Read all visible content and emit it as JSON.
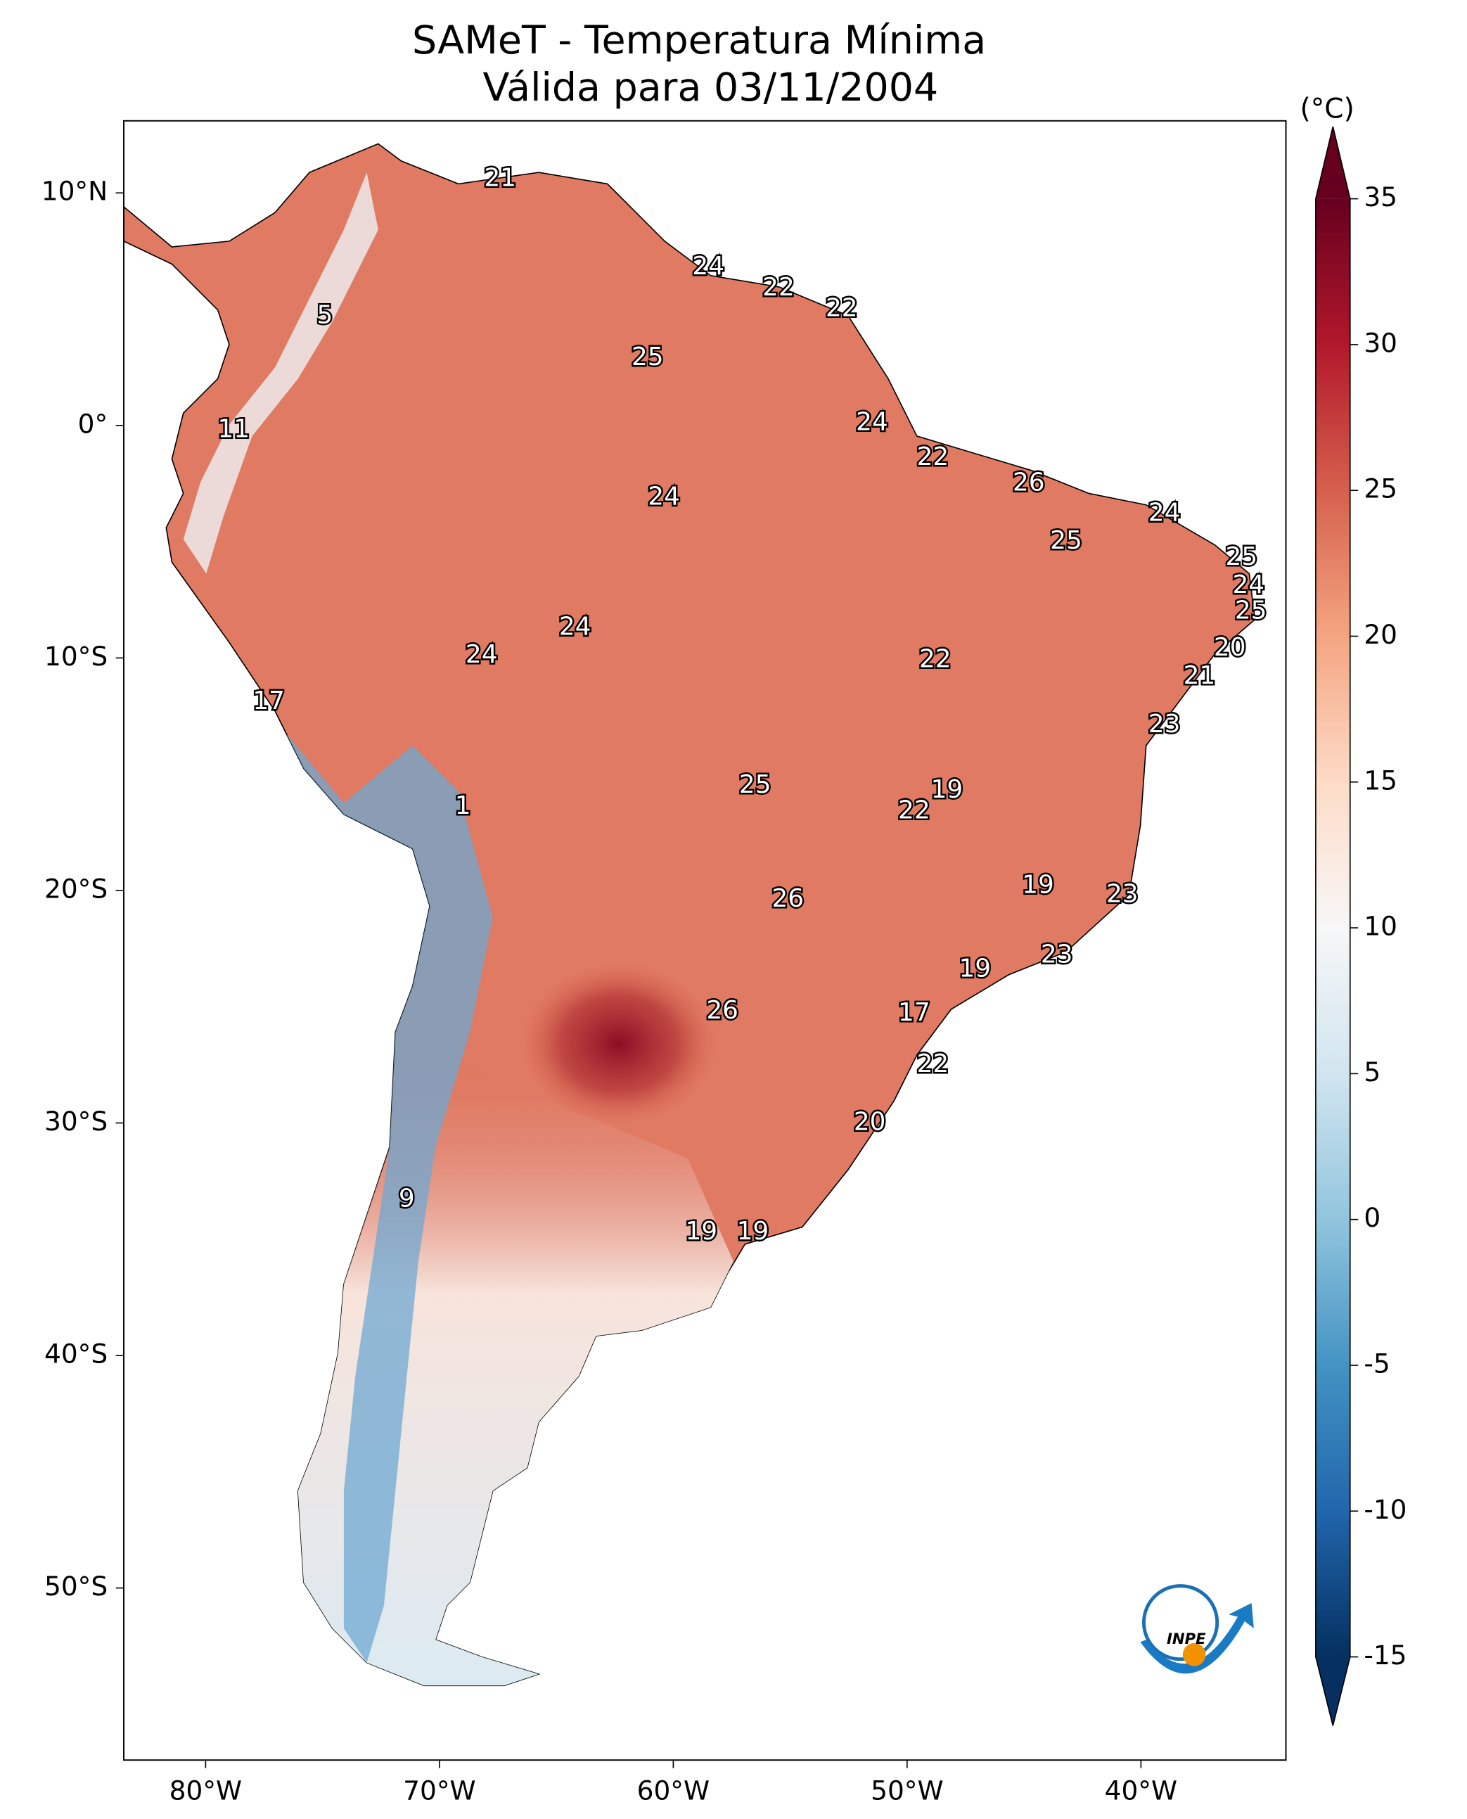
{
  "chart_data": {
    "type": "map",
    "title": "SAMeT - Temperatura Mínima",
    "subtitle": "Válida para 03/11/2004",
    "xlim": [
      -83.5,
      -33.8
    ],
    "ylim": [
      -57.4,
      13.1
    ],
    "xticks": [
      {
        "value": -80,
        "label": "80°W"
      },
      {
        "value": -70,
        "label": "70°W"
      },
      {
        "value": -60,
        "label": "60°W"
      },
      {
        "value": -50,
        "label": "50°W"
      },
      {
        "value": -40,
        "label": "40°W"
      }
    ],
    "yticks": [
      {
        "value": 10,
        "label": "10°N"
      },
      {
        "value": 0,
        "label": "0°"
      },
      {
        "value": -10,
        "label": "10°S"
      },
      {
        "value": -20,
        "label": "20°S"
      },
      {
        "value": -30,
        "label": "30°S"
      },
      {
        "value": -40,
        "label": "40°S"
      },
      {
        "value": -50,
        "label": "50°S"
      }
    ],
    "colorbar": {
      "label": "(°C)",
      "lim": [
        -15,
        35
      ],
      "ticks": [
        -15,
        -10,
        -5,
        0,
        5,
        10,
        15,
        20,
        25,
        30,
        35
      ],
      "colors": [
        "#053061",
        "#2166ac",
        "#4393c3",
        "#92c5de",
        "#d1e5f0",
        "#f7f7f7",
        "#fddbc7",
        "#f4a582",
        "#d6604d",
        "#b2182b",
        "#67001f"
      ]
    },
    "point_labels": [
      {
        "lon": -67.4,
        "lat": 10.6,
        "value": 21
      },
      {
        "lon": -74.9,
        "lat": 4.7,
        "value": 5
      },
      {
        "lon": -78.8,
        "lat": -0.2,
        "value": 11
      },
      {
        "lon": -58.5,
        "lat": 6.8,
        "value": 24
      },
      {
        "lon": -55.5,
        "lat": 5.9,
        "value": 22
      },
      {
        "lon": -52.8,
        "lat": 5.0,
        "value": 22
      },
      {
        "lon": -61.1,
        "lat": 2.9,
        "value": 25
      },
      {
        "lon": -51.5,
        "lat": 0.1,
        "value": 24
      },
      {
        "lon": -48.9,
        "lat": -1.4,
        "value": 22
      },
      {
        "lon": -60.4,
        "lat": -3.1,
        "value": 24
      },
      {
        "lon": -44.8,
        "lat": -2.5,
        "value": 26
      },
      {
        "lon": -39.0,
        "lat": -3.8,
        "value": 24
      },
      {
        "lon": -43.2,
        "lat": -5.0,
        "value": 25
      },
      {
        "lon": -35.7,
        "lat": -5.7,
        "value": 25
      },
      {
        "lon": -35.4,
        "lat": -6.9,
        "value": 24
      },
      {
        "lon": -35.3,
        "lat": -8.0,
        "value": 25
      },
      {
        "lon": -64.2,
        "lat": -8.7,
        "value": 24
      },
      {
        "lon": -68.2,
        "lat": -9.9,
        "value": 24
      },
      {
        "lon": -48.8,
        "lat": -10.1,
        "value": 22
      },
      {
        "lon": -36.2,
        "lat": -9.6,
        "value": 20
      },
      {
        "lon": -37.5,
        "lat": -10.8,
        "value": 21
      },
      {
        "lon": -77.3,
        "lat": -11.9,
        "value": 17
      },
      {
        "lon": -39.0,
        "lat": -12.9,
        "value": 23
      },
      {
        "lon": -56.5,
        "lat": -15.5,
        "value": 25
      },
      {
        "lon": -48.3,
        "lat": -15.7,
        "value": 19
      },
      {
        "lon": -49.7,
        "lat": -16.6,
        "value": 22
      },
      {
        "lon": -69.0,
        "lat": -16.4,
        "value": 1
      },
      {
        "lon": -44.4,
        "lat": -19.8,
        "value": 19
      },
      {
        "lon": -55.1,
        "lat": -20.4,
        "value": 26
      },
      {
        "lon": -40.8,
        "lat": -20.2,
        "value": 23
      },
      {
        "lon": -43.6,
        "lat": -22.8,
        "value": 23
      },
      {
        "lon": -47.1,
        "lat": -23.4,
        "value": 19
      },
      {
        "lon": -57.9,
        "lat": -25.2,
        "value": 26
      },
      {
        "lon": -49.7,
        "lat": -25.3,
        "value": 17
      },
      {
        "lon": -48.9,
        "lat": -27.5,
        "value": 22
      },
      {
        "lon": -51.6,
        "lat": -30.0,
        "value": 20
      },
      {
        "lon": -71.4,
        "lat": -33.3,
        "value": 9
      },
      {
        "lon": -58.8,
        "lat": -34.7,
        "value": 19
      },
      {
        "lon": -56.6,
        "lat": -34.7,
        "value": 19
      }
    ],
    "logo_text": "INPE"
  }
}
